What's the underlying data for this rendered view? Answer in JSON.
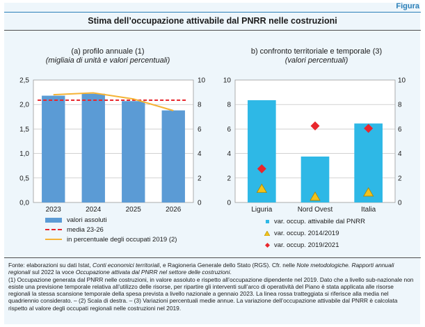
{
  "figure_label": "Figura",
  "title": "Stima dell’occupazione attivabile dal PNRR nelle costruzioni",
  "chart_data": [
    {
      "type": "bar",
      "title": "(a) profilo annuale (1)",
      "subtitle": "(migliaia di unità e valori percentuali)",
      "categories": [
        "2023",
        "2024",
        "2025",
        "2026"
      ],
      "ylim_left": [
        0,
        2.5
      ],
      "ylim_right": [
        0,
        10
      ],
      "left_ticks": [
        "0,0",
        "0,5",
        "1,0",
        "1,5",
        "2,0",
        "2,5"
      ],
      "right_ticks": [
        "0",
        "2",
        "4",
        "6",
        "8",
        "10"
      ],
      "grid": true,
      "series": [
        {
          "name": "valori assoluti",
          "type": "bar",
          "axis": "left",
          "values": [
            2.18,
            2.22,
            2.07,
            1.88
          ],
          "color": "#5b9bd5"
        },
        {
          "name": "media 23-26",
          "type": "line",
          "style": "dashed",
          "axis": "right",
          "values": [
            8.35,
            8.35,
            8.35,
            8.35
          ],
          "color": "#e8262c"
        },
        {
          "name": "in percentuale degli occupati 2019 (2)",
          "type": "line",
          "axis": "right",
          "values": [
            8.8,
            8.95,
            8.45,
            7.5
          ],
          "color": "#f5b335"
        }
      ]
    },
    {
      "type": "bar",
      "title": "b) confronto territoriale e temporale (3)",
      "subtitle": "(valori percentuali)",
      "categories": [
        "Liguria",
        "Nord Ovest",
        "Italia"
      ],
      "ylim": [
        0,
        10
      ],
      "left_ticks": [
        "0",
        "2",
        "4",
        "6",
        "8",
        "10"
      ],
      "right_ticks": [
        "0",
        "2",
        "4",
        "6",
        "8",
        "10"
      ],
      "grid": true,
      "series": [
        {
          "name": "var. occup. attivabile dal PNRR",
          "type": "bar",
          "values": [
            8.35,
            3.75,
            6.45
          ],
          "color": "#2eb8e6"
        },
        {
          "name": "var. occup. 2014/2019",
          "type": "scatter",
          "marker": "triangle",
          "values": [
            1.1,
            0.45,
            0.8
          ],
          "color": "#f2c21b"
        },
        {
          "name": "var. occup. 2019/2021",
          "type": "scatter",
          "marker": "diamond",
          "values": [
            2.75,
            6.25,
            6.05
          ],
          "color": "#e8262c"
        }
      ]
    }
  ],
  "notes": {
    "p1_a": "Fonte: elaborazioni su dati Istat, ",
    "p1_b": "Conti economici territoriali",
    "p1_c": ", e Ragioneria Generale dello Stato (RGS). Cfr. nelle ",
    "p1_d": "Note metodologiche. Rapporti annuali regionali",
    "p1_e": " sul 2022 la voce ",
    "p1_f": "Occupazione attivata dal PNRR nel settore delle costruzioni",
    "p1_g": ".",
    "p2": "(1) Occupazione generata dal PNRR nelle costruzioni, in valore assoluto e rispetto all’occupazione dipendente nel 2019. Dato che a livello sub-nazionale non esiste una previsione temporale relativa all’utilizzo delle risorse, per ripartire gli interventi sull’arco di operatività del Piano è stata applicata alle risorse regionali la stessa scansione temporale della spesa prevista a livello nazionale a gennaio 2023. La linea rossa tratteggiata si riferisce alla media nel quadriennio considerato. – (2) Scala di destra. – (3) Variazioni percentuali medie annue. La variazione dell’occupazione attivabile dal PNRR è calcolata rispetto al valore degli occupati regionali nelle costruzioni nel 2019."
  }
}
